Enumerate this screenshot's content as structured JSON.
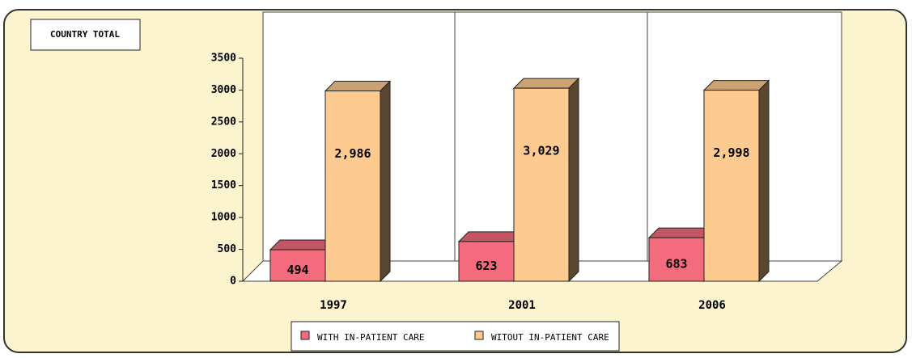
{
  "chart_data": {
    "type": "bar3d",
    "title": "COUNTRY TOTAL",
    "categories": [
      "1997",
      "2001",
      "2006"
    ],
    "series": [
      {
        "name": "WITH IN-PATIENT CARE",
        "color": "#f46b7e",
        "values": [
          494,
          623,
          683
        ]
      },
      {
        "name": "WITOUT IN-PATIENT CARE",
        "color": "#fdca90",
        "values": [
          2986,
          3029,
          2998
        ],
        "value_labels": [
          "2,986",
          "3,029",
          "2,998"
        ]
      }
    ],
    "ylim": [
      0,
      3500
    ],
    "yticks": [
      0,
      500,
      1000,
      1500,
      2000,
      2500,
      3000,
      3500
    ]
  }
}
